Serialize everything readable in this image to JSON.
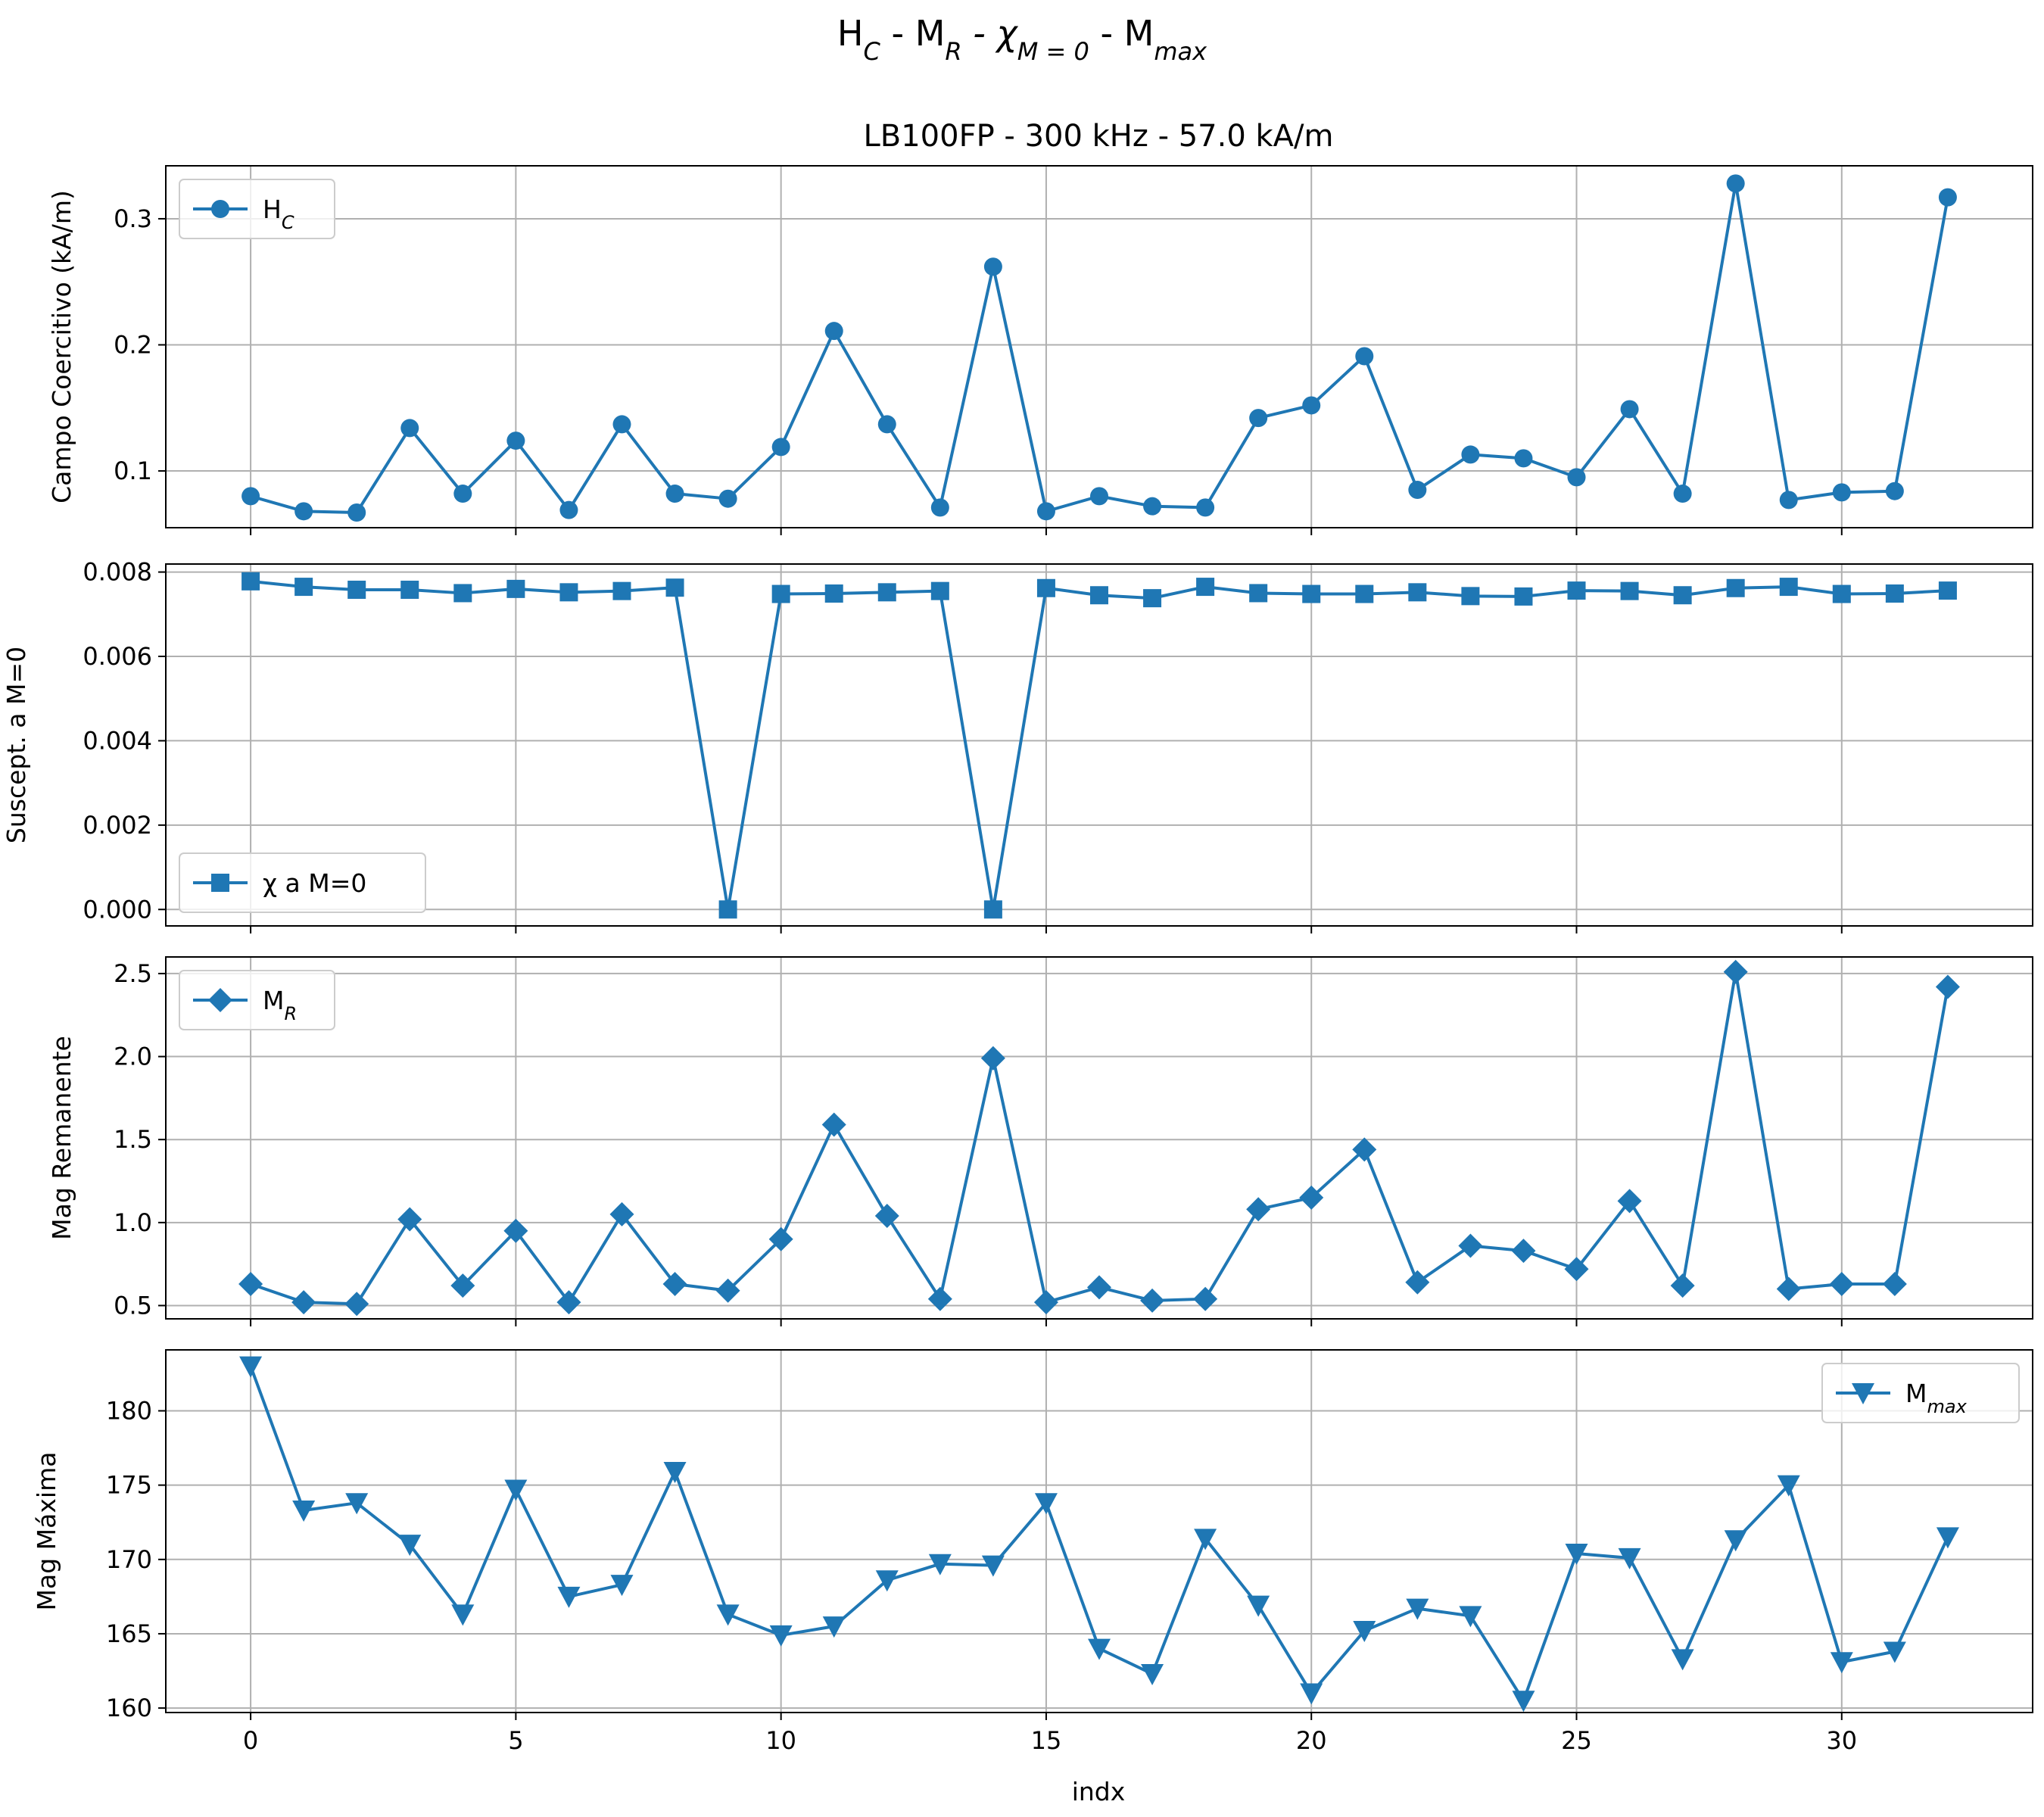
{
  "figure": {
    "suptitle": {
      "p1": "H",
      "p1sub": "C",
      "p2": " - M",
      "p2sub": "R",
      "p3": " - χ",
      "p3sub": "M = 0",
      "p4": " - M",
      "p4sub": "max"
    },
    "subtitle": "LB100FP - 300 kHz - 57.0 kA/m",
    "xlabel": "indx"
  },
  "colors": {
    "series": "#1f77b4",
    "grid": "#b0b0b0",
    "axis": "#000000"
  },
  "chart_data": [
    {
      "type": "line",
      "marker": "circle",
      "legend": {
        "main": "H",
        "sub": "C",
        "position": "upper-left"
      },
      "ylabel": "Campo Coercitivo (kA/m)",
      "xlim": [
        -1.6,
        33.6
      ],
      "ylim": [
        0.055,
        0.342
      ],
      "xticks": [
        0,
        5,
        10,
        15,
        20,
        25,
        30
      ],
      "yticks": [
        0.1,
        0.2,
        0.3
      ],
      "ytick_labels": [
        "0.1",
        "0.2",
        "0.3"
      ],
      "grid": true,
      "values": [
        0.08,
        0.068,
        0.067,
        0.134,
        0.082,
        0.124,
        0.069,
        0.137,
        0.082,
        0.078,
        0.119,
        0.211,
        0.137,
        0.071,
        0.262,
        0.068,
        0.08,
        0.072,
        0.071,
        0.142,
        0.152,
        0.191,
        0.085,
        0.113,
        0.11,
        0.095,
        0.149,
        0.082,
        0.328,
        0.077,
        0.083,
        0.084,
        0.317
      ]
    },
    {
      "type": "line",
      "marker": "square",
      "legend": {
        "main": "χ a M=0",
        "sub": "",
        "position": "lower-left"
      },
      "ylabel": "Suscept. a M=0",
      "xlim": [
        -1.6,
        33.6
      ],
      "ylim": [
        -0.00039,
        0.00819
      ],
      "xticks": [
        0,
        5,
        10,
        15,
        20,
        25,
        30
      ],
      "yticks": [
        0.0,
        0.002,
        0.004,
        0.006,
        0.008
      ],
      "ytick_labels": [
        "0.000",
        "0.002",
        "0.004",
        "0.006",
        "0.008"
      ],
      "grid": true,
      "values": [
        0.00778,
        0.00765,
        0.00758,
        0.00758,
        0.0075,
        0.0076,
        0.00752,
        0.00755,
        0.00763,
        0.0,
        0.00748,
        0.00749,
        0.00752,
        0.00755,
        0.0,
        0.00762,
        0.00745,
        0.00738,
        0.00765,
        0.0075,
        0.00748,
        0.00748,
        0.00752,
        0.00743,
        0.00742,
        0.00756,
        0.00755,
        0.00745,
        0.00762,
        0.00765,
        0.00748,
        0.00749,
        0.00756
      ]
    },
    {
      "type": "line",
      "marker": "diamond",
      "legend": {
        "main": "M",
        "sub": "R",
        "position": "upper-left"
      },
      "ylabel": "Mag Remanente",
      "xlim": [
        -1.6,
        33.6
      ],
      "ylim": [
        0.42,
        2.6
      ],
      "xticks": [
        0,
        5,
        10,
        15,
        20,
        25,
        30
      ],
      "yticks": [
        0.5,
        1.0,
        1.5,
        2.0,
        2.5
      ],
      "ytick_labels": [
        "0.5",
        "1.0",
        "1.5",
        "2.0",
        "2.5"
      ],
      "grid": true,
      "values": [
        0.63,
        0.52,
        0.51,
        1.02,
        0.62,
        0.95,
        0.52,
        1.05,
        0.63,
        0.59,
        0.9,
        1.59,
        1.04,
        0.54,
        1.99,
        0.52,
        0.61,
        0.53,
        0.54,
        1.08,
        1.15,
        1.44,
        0.64,
        0.86,
        0.83,
        0.72,
        1.13,
        0.62,
        2.51,
        0.6,
        0.63,
        0.63,
        2.42
      ]
    },
    {
      "type": "line",
      "marker": "triangle-down",
      "legend": {
        "main": "M",
        "sub": "max",
        "position": "upper-right"
      },
      "ylabel": "Mag Máxima",
      "xlim": [
        -1.6,
        33.6
      ],
      "ylim": [
        159.7,
        184.1
      ],
      "xticks": [
        0,
        5,
        10,
        15,
        20,
        25,
        30
      ],
      "xtick_labels": [
        "0",
        "5",
        "10",
        "15",
        "20",
        "25",
        "30"
      ],
      "yticks": [
        160,
        165,
        170,
        175,
        180
      ],
      "ytick_labels": [
        "160",
        "165",
        "170",
        "175",
        "180"
      ],
      "grid": true,
      "values": [
        183.0,
        173.3,
        173.8,
        171.0,
        166.3,
        174.7,
        167.5,
        168.3,
        175.9,
        166.3,
        164.9,
        165.5,
        168.6,
        169.7,
        169.6,
        173.8,
        164.0,
        162.3,
        171.4,
        166.9,
        161.0,
        165.2,
        166.7,
        166.2,
        160.5,
        170.4,
        170.1,
        163.3,
        171.3,
        175.0,
        163.1,
        163.8,
        171.5
      ]
    }
  ]
}
